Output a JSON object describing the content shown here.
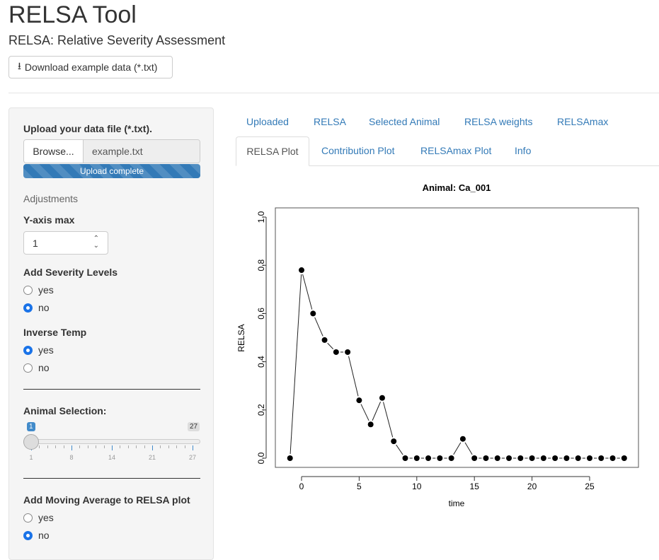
{
  "header": {
    "title": "RELSA Tool",
    "subtitle": "RELSA: Relative Severity Assessment",
    "download_label": "Download example data (*.txt)"
  },
  "sidebar": {
    "upload_label": "Upload your data file (*.txt).",
    "browse_label": "Browse...",
    "file_name": "example.txt",
    "progress_text": "Upload complete",
    "progress": 100,
    "adjustments": "Adjustments",
    "yaxis_label": "Y-axis max",
    "yaxis_value": "1",
    "severity": {
      "label": "Add Severity Levels",
      "options": [
        "yes",
        "no"
      ],
      "selected": "no"
    },
    "inverse": {
      "label": "Inverse Temp",
      "options": [
        "yes",
        "no"
      ],
      "selected": "yes"
    },
    "animal": {
      "label": "Animal Selection:",
      "min": 1,
      "max": 27,
      "value": 1,
      "value_label": "1",
      "max_label": "27",
      "ticks": [
        "1",
        "8",
        "14",
        "21",
        "27"
      ]
    },
    "moving": {
      "label": "Add Moving Average to RELSA plot",
      "options": [
        "yes",
        "no"
      ],
      "selected": "no"
    }
  },
  "tabs": {
    "row1": [
      "Uploaded",
      "RELSA",
      "Selected Animal",
      "RELSA weights",
      "RELSAmax"
    ],
    "row2": [
      "RELSA Plot",
      "Contribution Plot",
      "RELSAmax Plot",
      "Info"
    ],
    "active": "RELSA Plot"
  },
  "chart_data": {
    "type": "line",
    "title": "Animal: Ca_001",
    "xlabel": "time",
    "ylabel": "RELSA",
    "x": [
      -1,
      0,
      1,
      2,
      3,
      4,
      5,
      6,
      7,
      8,
      9,
      10,
      11,
      12,
      13,
      14,
      15,
      16,
      17,
      18,
      19,
      20,
      21,
      22,
      23,
      24,
      25,
      26,
      27,
      28
    ],
    "y": [
      0,
      0.78,
      0.6,
      0.49,
      0.44,
      0.44,
      0.24,
      0.14,
      0.25,
      0.07,
      0,
      0,
      0,
      0,
      0,
      0.08,
      0,
      0,
      0,
      0,
      0,
      0,
      0,
      0,
      0,
      0,
      0,
      0,
      0,
      0
    ],
    "xticks": [
      "0",
      "5",
      "10",
      "15",
      "20",
      "25"
    ],
    "yticks": [
      "0.0",
      "0.2",
      "0.4",
      "0.6",
      "0.8",
      "1.0"
    ],
    "ylim": [
      0,
      1
    ],
    "xlim": [
      -1,
      28
    ],
    "grid": false,
    "legend": "none"
  }
}
